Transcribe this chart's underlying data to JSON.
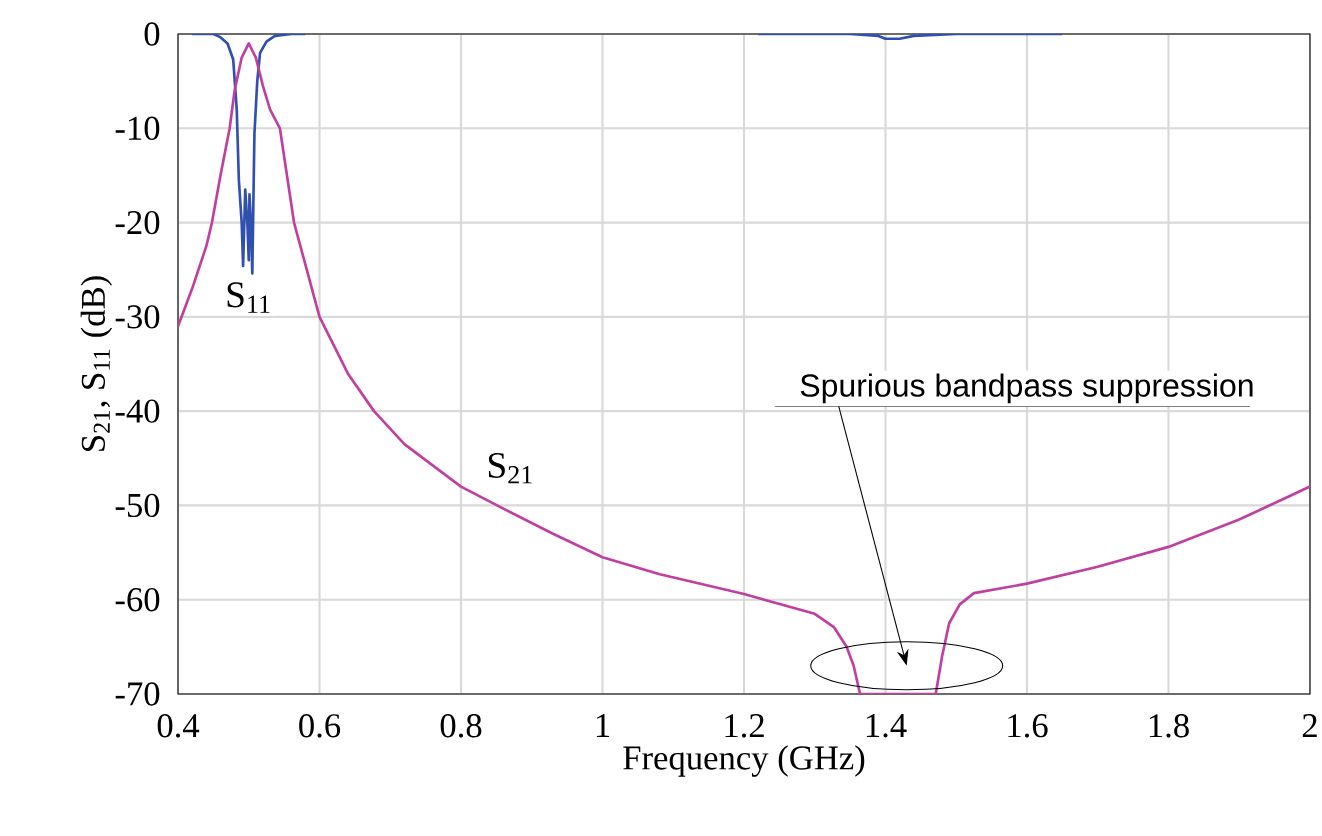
{
  "chart_data": {
    "type": "line",
    "xlabel": "Frequency (GHz)",
    "ylabel": "S$_{21}$, S$_{11}$    (dB)",
    "xlim": [
      0.4,
      2
    ],
    "ylim": [
      -70,
      0
    ],
    "xticks": [
      0.4,
      0.6,
      0.8,
      1,
      1.2,
      1.4,
      1.6,
      1.8,
      2
    ],
    "yticks": [
      0,
      -10,
      -20,
      -30,
      -40,
      -50,
      -60,
      -70
    ],
    "grid": true,
    "line_style": "solid",
    "series": [
      {
        "name": "S$_{11}$",
        "color": "#3050b0",
        "x": [
          0.42,
          0.45,
          0.459,
          0.47,
          0.478,
          0.483,
          0.486,
          0.49,
          0.492,
          0.495,
          0.498,
          0.5,
          0.501,
          0.503,
          0.505,
          0.508,
          0.512,
          0.516,
          0.525,
          0.537,
          0.56,
          0.58,
          0.6,
          1.22,
          1.35,
          1.39,
          1.4,
          1.42,
          1.44,
          1.5,
          1.65
        ],
        "values": [
          0,
          0,
          -0.3,
          -1,
          -2.7,
          -8,
          -15.5,
          -20,
          -24.6,
          -16.5,
          -20,
          -24,
          -17,
          -20,
          -25.4,
          -10.6,
          -5,
          -2,
          -0.8,
          -0.2,
          0,
          0,
          null,
          0,
          0,
          -0.2,
          -0.5,
          -0.5,
          -0.2,
          0,
          0
        ]
      },
      {
        "name": "S$_{21}$",
        "color": "#c040a0",
        "x": [
          0.4,
          0.42,
          0.44,
          0.448,
          0.46,
          0.473,
          0.48,
          0.49,
          0.5,
          0.51,
          0.52,
          0.53,
          0.544,
          0.564,
          0.6,
          0.64,
          0.677,
          0.72,
          0.8,
          0.864,
          0.93,
          1.0,
          1.081,
          1.2,
          1.3,
          1.327,
          1.345,
          1.355,
          1.364,
          1.471,
          1.48,
          1.49,
          1.505,
          1.525,
          1.6,
          1.7,
          1.8,
          1.9,
          2.0
        ],
        "values": [
          -31,
          -27,
          -22.5,
          -20,
          -15,
          -10,
          -6,
          -2.5,
          -1,
          -2.5,
          -5.5,
          -8,
          -10,
          -20,
          -30,
          -36,
          -40,
          -43.5,
          -48,
          -50.5,
          -53,
          -55.5,
          -57.3,
          -59.4,
          -61.5,
          -62.9,
          -65,
          -67,
          -70,
          -70,
          -66,
          -62.5,
          -60.5,
          -59.3,
          -58.3,
          -56.5,
          -54.4,
          -51.5,
          -48
        ]
      }
    ],
    "annotations": [
      "Spurious bandpass suppression"
    ]
  }
}
